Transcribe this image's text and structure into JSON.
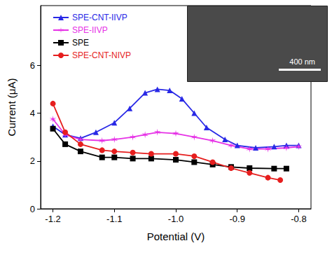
{
  "chart_data": {
    "type": "line",
    "x_label": "Potential (V)",
    "y_label": "Current (μA)",
    "xlim": [
      -1.22,
      -0.78
    ],
    "xticks": [
      -1.2,
      -1.1,
      {
        "value": -1.0,
        "label": "-1.0"
      },
      -0.9,
      -0.8
    ],
    "ylim": [
      0,
      8.5
    ],
    "yticks": [
      0,
      2,
      4,
      6
    ],
    "grid": false,
    "legend": "upper left",
    "annotations": [
      "400 nm"
    ],
    "series": [
      {
        "name": "SPE-CNT-IIVP",
        "color": "#2828e6",
        "marker": "triangle",
        "line_style": "solid",
        "x": [
          -1.2,
          -1.18,
          -1.155,
          -1.13,
          -1.1,
          -1.075,
          -1.05,
          -1.03,
          -1.01,
          -0.99,
          -0.97,
          -0.95,
          -0.92,
          -0.9,
          -0.87,
          -0.84,
          -0.82,
          -0.8
        ],
        "values": [
          3.45,
          3.1,
          2.95,
          3.2,
          3.6,
          4.2,
          4.85,
          5.0,
          4.95,
          4.6,
          4.0,
          3.4,
          2.9,
          2.65,
          2.55,
          2.6,
          2.65,
          2.65
        ]
      },
      {
        "name": "SPE-IIVP",
        "color": "#e632e6",
        "marker": "star",
        "line_style": "solid",
        "x": [
          -1.2,
          -1.18,
          -1.155,
          -1.12,
          -1.1,
          -1.07,
          -1.05,
          -1.03,
          -1.0,
          -0.97,
          -0.94,
          -0.91,
          -0.88,
          -0.85,
          -0.82,
          -0.8
        ],
        "values": [
          3.75,
          3.1,
          2.9,
          2.85,
          2.9,
          3.0,
          3.1,
          3.2,
          3.15,
          3.0,
          2.85,
          2.65,
          2.5,
          2.5,
          2.55,
          2.6
        ]
      },
      {
        "name": "SPE",
        "color": "#000000",
        "marker": "square",
        "line_style": "solid",
        "x": [
          -1.2,
          -1.18,
          -1.155,
          -1.12,
          -1.1,
          -1.07,
          -1.04,
          -1.0,
          -0.97,
          -0.94,
          -0.91,
          -0.88,
          -0.84,
          -0.82
        ],
        "values": [
          3.35,
          2.7,
          2.4,
          2.15,
          2.15,
          2.1,
          2.1,
          2.05,
          1.95,
          1.85,
          1.75,
          1.7,
          1.68,
          1.68
        ]
      },
      {
        "name": "SPE-CNT-NIVP",
        "color": "#e61e1e",
        "marker": "circle",
        "line_style": "solid",
        "x": [
          -1.2,
          -1.18,
          -1.155,
          -1.12,
          -1.1,
          -1.07,
          -1.04,
          -1.0,
          -0.97,
          -0.94,
          -0.91,
          -0.88,
          -0.85,
          -0.83
        ],
        "values": [
          4.4,
          3.2,
          2.7,
          2.45,
          2.4,
          2.35,
          2.3,
          2.3,
          2.2,
          1.95,
          1.7,
          1.5,
          1.3,
          1.2
        ]
      }
    ]
  }
}
